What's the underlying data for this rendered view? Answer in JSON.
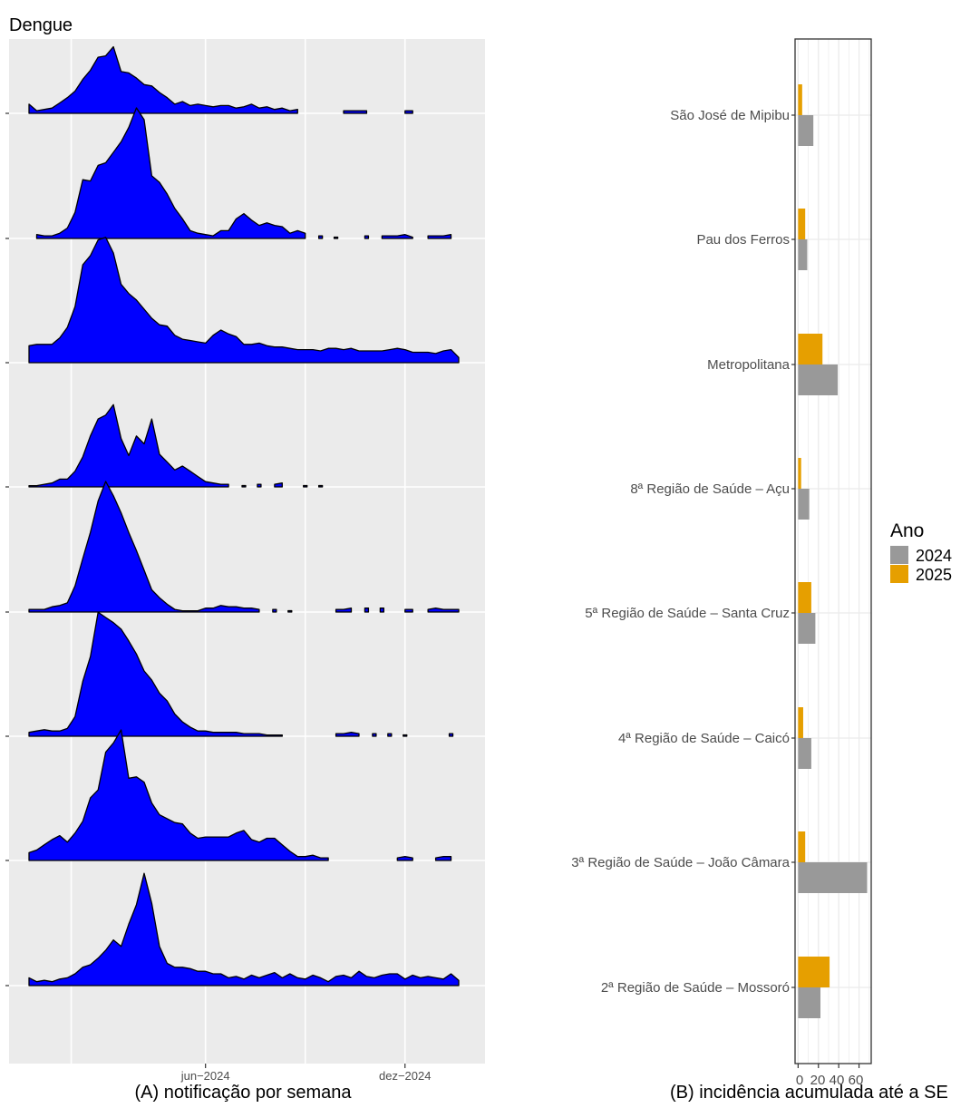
{
  "title": "Dengue",
  "colors": {
    "panel_bg": "#EBEBEB",
    "grid_major": "#FFFFFF",
    "ridge_fill": "#0000FF",
    "ridge_stroke": "#000000",
    "bar_2024": "#999999",
    "bar_2025": "#E69F00",
    "axis_text": "#4D4D4D",
    "grid_b": "#EBEBEB"
  },
  "chart_data": [
    {
      "type": "area",
      "name": "ridgeline",
      "xlabel": "(A) notificação por semana",
      "x_tick_labels": [
        "jun−2024",
        "dez−2024"
      ],
      "x_tick_weeks": [
        23,
        49
      ],
      "x_week_range": [
        0,
        56
      ],
      "week_count": 57,
      "regions_bottom_to_top": [
        "2ª Região de Saúde – Mossoró",
        "3ª Região de Saúde – João Câmara",
        "4ª Região de Saúde – Caicó",
        "5ª Região de Saúde – Santa Cruz",
        "8ª Região de Saúde – Açu",
        "Metropolitana",
        "Pau dos Ferros",
        "São José de Mipibu"
      ],
      "series": [
        {
          "name": "2ª Região de Saúde – Mossoró",
          "values": [
            0.06,
            0.03,
            0.04,
            0.03,
            0.05,
            0.06,
            0.09,
            0.14,
            0.16,
            0.21,
            0.27,
            0.35,
            0.3,
            0.47,
            0.62,
            0.86,
            0.63,
            0.3,
            0.17,
            0.14,
            0.14,
            0.13,
            0.11,
            0.11,
            0.09,
            0.09,
            0.06,
            0.07,
            0.05,
            0.08,
            0.06,
            0.08,
            0.1,
            0.06,
            0.09,
            0.06,
            0.05,
            0.08,
            0.06,
            0.03,
            0.07,
            0.08,
            0.06,
            0.11,
            0.07,
            0.06,
            0.08,
            0.09,
            0.09,
            0.05,
            0.08,
            0.06,
            0.07,
            0.06,
            0.05,
            0.09,
            0.04
          ]
        },
        {
          "name": "3ª Região de Saúde – João Câmara",
          "values": [
            0.06,
            0.08,
            0.12,
            0.16,
            0.19,
            0.14,
            0.21,
            0.3,
            0.48,
            0.54,
            0.83,
            0.9,
            1.0,
            0.63,
            0.64,
            0.6,
            0.44,
            0.35,
            0.32,
            0.29,
            0.28,
            0.21,
            0.17,
            0.18,
            0.18,
            0.18,
            0.18,
            0.21,
            0.23,
            0.16,
            0.14,
            0.17,
            0.17,
            0.12,
            0.07,
            0.03,
            0.03,
            0.04,
            0.02,
            0.02,
            null,
            null,
            null,
            null,
            null,
            null,
            null,
            null,
            0.02,
            0.03,
            0.02,
            null,
            null,
            0.02,
            0.03,
            0.03,
            null
          ]
        },
        {
          "name": "4ª Região de Saúde – Caicó",
          "values": [
            0.03,
            0.04,
            0.05,
            0.04,
            0.04,
            0.06,
            0.15,
            0.42,
            0.61,
            0.95,
            0.91,
            0.87,
            0.82,
            0.73,
            0.63,
            0.5,
            0.43,
            0.33,
            0.27,
            0.17,
            0.11,
            0.07,
            0.04,
            0.04,
            0.03,
            0.03,
            0.03,
            0.03,
            0.02,
            0.02,
            0.02,
            0.01,
            0.01,
            0.01,
            null,
            null,
            null,
            null,
            null,
            null,
            0.02,
            0.02,
            0.03,
            0.02,
            null,
            0.02,
            null,
            0.02,
            null,
            0.01,
            null,
            null,
            null,
            null,
            null,
            0.02,
            null
          ]
        },
        {
          "name": "5ª Região de Saúde – Santa Cruz",
          "values": [
            0.02,
            0.02,
            0.02,
            0.04,
            0.05,
            0.07,
            0.2,
            0.41,
            0.61,
            0.85,
            1.0,
            0.89,
            0.76,
            0.61,
            0.47,
            0.32,
            0.17,
            0.11,
            0.06,
            0.02,
            0.01,
            0.01,
            0.01,
            0.03,
            0.03,
            0.05,
            0.04,
            0.04,
            0.03,
            0.03,
            0.02,
            null,
            0.02,
            null,
            0.01,
            null,
            null,
            null,
            null,
            null,
            0.02,
            0.02,
            0.03,
            null,
            0.03,
            null,
            0.03,
            null,
            null,
            0.02,
            0.02,
            null,
            0.02,
            0.03,
            0.02,
            0.02,
            0.02
          ]
        },
        {
          "name": "8ª Região de Saúde – Açu",
          "values": [
            0.01,
            0.01,
            0.02,
            0.03,
            0.06,
            0.06,
            0.12,
            0.23,
            0.39,
            0.52,
            0.55,
            0.63,
            0.37,
            0.24,
            0.39,
            0.33,
            0.52,
            0.25,
            0.19,
            0.13,
            0.16,
            0.12,
            0.08,
            0.04,
            0.03,
            0.02,
            0.02,
            null,
            0.01,
            null,
            0.02,
            null,
            0.02,
            0.03,
            null,
            null,
            0.01,
            null,
            0.01,
            null,
            null,
            null,
            null,
            null,
            null,
            null,
            null,
            null,
            null,
            null,
            null,
            null,
            null,
            null,
            null,
            null,
            null
          ]
        },
        {
          "name": "Metropolitana",
          "values": [
            0.13,
            0.14,
            0.14,
            0.14,
            0.19,
            0.27,
            0.43,
            0.75,
            0.82,
            0.94,
            0.96,
            0.84,
            0.6,
            0.53,
            0.48,
            0.41,
            0.34,
            0.29,
            0.28,
            0.21,
            0.18,
            0.17,
            0.16,
            0.15,
            0.21,
            0.25,
            0.22,
            0.2,
            0.14,
            0.14,
            0.15,
            0.13,
            0.12,
            0.12,
            0.11,
            0.1,
            0.1,
            0.1,
            0.09,
            0.11,
            0.11,
            0.1,
            0.11,
            0.09,
            0.09,
            0.09,
            0.09,
            0.1,
            0.11,
            0.1,
            0.08,
            0.08,
            0.08,
            0.07,
            0.09,
            0.1,
            0.04
          ]
        },
        {
          "name": "Pau dos Ferros",
          "values": [
            null,
            0.03,
            0.02,
            0.02,
            0.04,
            0.08,
            0.2,
            0.45,
            0.44,
            0.56,
            0.58,
            0.66,
            0.74,
            0.85,
            1.0,
            0.91,
            0.48,
            0.43,
            0.34,
            0.23,
            0.15,
            0.06,
            0.04,
            0.03,
            0.02,
            0.06,
            0.06,
            0.15,
            0.19,
            0.14,
            0.1,
            0.12,
            0.1,
            0.09,
            0.04,
            0.06,
            0.04,
            null,
            0.02,
            null,
            0.01,
            null,
            null,
            null,
            0.02,
            null,
            0.02,
            0.02,
            0.02,
            0.03,
            0.01,
            null,
            0.02,
            0.02,
            0.02,
            0.03,
            null
          ]
        },
        {
          "name": "São José de Mipibu",
          "values": [
            0.07,
            0.02,
            0.03,
            0.04,
            0.08,
            0.12,
            0.17,
            0.26,
            0.33,
            0.43,
            0.44,
            0.51,
            0.32,
            0.31,
            0.27,
            0.22,
            0.21,
            0.16,
            0.12,
            0.07,
            0.09,
            0.06,
            0.07,
            0.06,
            0.05,
            0.06,
            0.06,
            0.04,
            0.05,
            0.07,
            0.04,
            0.05,
            0.03,
            0.04,
            0.02,
            0.03,
            null,
            null,
            null,
            null,
            null,
            0.02,
            0.02,
            0.02,
            0.02,
            null,
            null,
            null,
            null,
            0.02,
            0.02,
            null,
            null,
            null,
            null,
            null,
            null
          ]
        }
      ]
    },
    {
      "type": "bar",
      "orientation": "horizontal",
      "xlabel": "(B) incidência acumulada até a SE",
      "x_tick_labels": [
        "0",
        "20",
        "40",
        "60"
      ],
      "xlim": [
        -3,
        72
      ],
      "categories": [
        "São José de Mipibu",
        "Pau dos Ferros",
        "Metropolitana",
        "8ª Região de Saúde – Açu",
        "5ª Região de Saúde – Santa Cruz",
        "4ª Região de Saúde – Caicó",
        "3ª Região de Saúde – João Câmara",
        "2ª Região de Saúde – Mossoró"
      ],
      "series": [
        {
          "name": "2024",
          "values": [
            15,
            9,
            39,
            11,
            17,
            13,
            68,
            22
          ]
        },
        {
          "name": "2025",
          "values": [
            4,
            7,
            24,
            3,
            13,
            5,
            7,
            31
          ]
        }
      ],
      "legend": {
        "title": "Ano",
        "position": "right",
        "items": [
          "2024",
          "2025"
        ]
      }
    }
  ]
}
